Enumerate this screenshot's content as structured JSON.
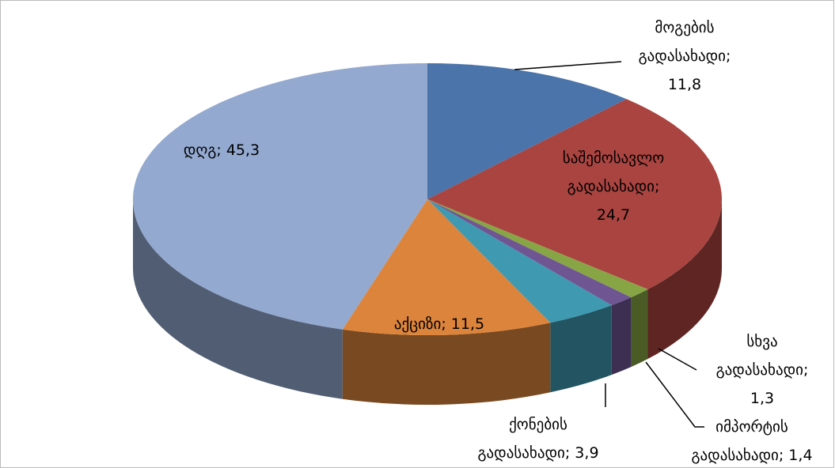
{
  "chart_data": {
    "type": "pie",
    "values": [
      11.8,
      24.7,
      1.3,
      1.4,
      3.9,
      11.5,
      45.3
    ],
    "value_labels": [
      "მოგების გადასახადი; 11,8",
      "საშემოსავლო გადასახადი; 24,7",
      "სხვა გადასახადი; 1,3",
      "იმპორტის გადასახადი; 1,4",
      "ქონების გადასახადი; 3,9",
      "აქციზი; 11,5",
      "დღგ; 45,3"
    ],
    "colors": [
      "#4a74aa",
      "#aa4440",
      "#88a546",
      "#6f5693",
      "#3e99b1",
      "#dc843c",
      "#93a9d0"
    ],
    "three_d": true
  }
}
